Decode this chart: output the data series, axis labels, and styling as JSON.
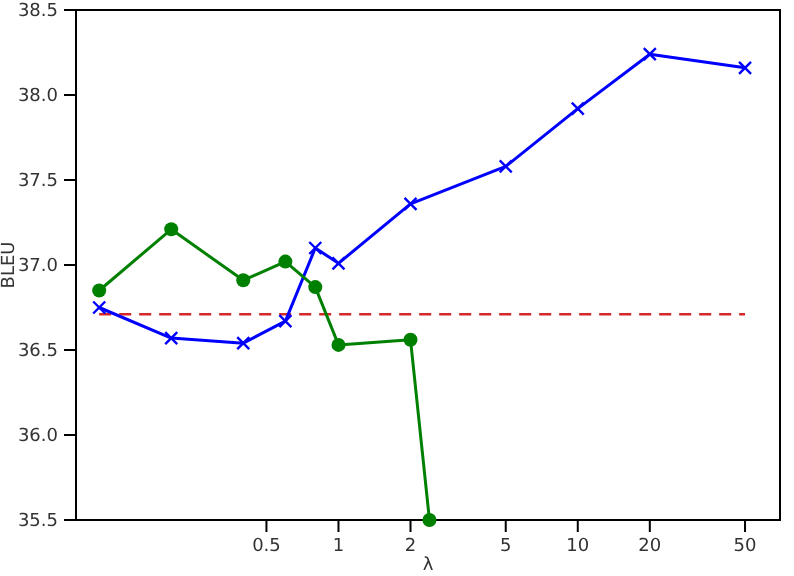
{
  "chart_data": {
    "type": "line",
    "xlabel": "λ",
    "ylabel": "BLEU",
    "log": "x",
    "xlim": [
      0.08,
      70
    ],
    "xticks": [
      0.5,
      1,
      2,
      5,
      10,
      20,
      50
    ],
    "ylim": [
      35.5,
      38.5
    ],
    "yticks": [
      {
        "value": 35.5,
        "label": "35.5"
      },
      {
        "value": 36,
        "label": "36.0"
      },
      {
        "value": 36.5,
        "label": "36.5"
      },
      {
        "value": 37,
        "label": "37.0"
      },
      {
        "value": 37.5,
        "label": "37.5"
      },
      {
        "value": 38,
        "label": "38.0"
      },
      {
        "value": 38.5,
        "label": "38.5"
      }
    ],
    "grid": false,
    "series": [
      {
        "color": "#0000ff",
        "marker": "cross",
        "x": [
          0.1,
          0.2,
          0.4,
          0.6,
          0.8,
          1,
          2,
          5,
          10,
          20,
          50
        ],
        "values": [
          36.75,
          36.57,
          36.54,
          36.67,
          37.1,
          37.01,
          37.36,
          37.58,
          37.92,
          38.24,
          38.16
        ]
      },
      {
        "color": "#008000",
        "marker": "circle",
        "x": [
          0.1,
          0.2,
          0.4,
          0.6,
          0.8,
          1,
          2,
          2.4
        ],
        "values": [
          36.85,
          37.21,
          36.91,
          37.02,
          36.87,
          36.53,
          36.56,
          35.5
        ]
      }
    ],
    "ref_lines": [
      {
        "axis": "y",
        "value": 36.71,
        "color": "#d62728",
        "line_style": "dashed"
      }
    ]
  }
}
